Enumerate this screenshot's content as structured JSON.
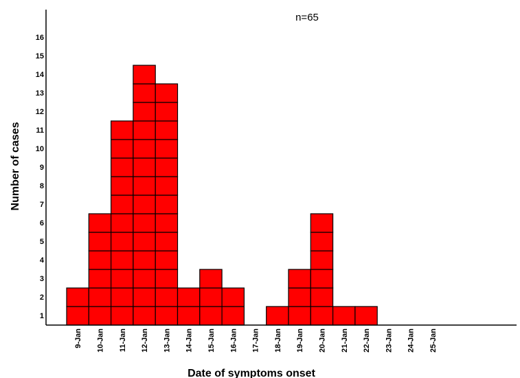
{
  "chart_data": {
    "type": "bar",
    "style": "epidemic curve (stacked case boxes)",
    "annotation": "n=65",
    "xlabel": "Date of symptoms onset",
    "ylabel": "Number of cases",
    "categories": [
      "9-Jan",
      "10-Jan",
      "11-Jan",
      "12-Jan",
      "13-Jan",
      "14-Jan",
      "15-Jan",
      "16-Jan",
      "17-Jan",
      "18-Jan",
      "19-Jan",
      "20-Jan",
      "21-Jan",
      "22-Jan",
      "23-Jan",
      "24-Jan",
      "25-Jan"
    ],
    "values": [
      2,
      6,
      11,
      14,
      13,
      2,
      3,
      2,
      0,
      1,
      3,
      6,
      1,
      1,
      0,
      0,
      0
    ],
    "ylim": [
      0,
      17
    ],
    "yticks": [
      "1",
      "2",
      "3",
      "4",
      "5",
      "6",
      "7",
      "8",
      "9",
      "10",
      "11",
      "12",
      "13",
      "14",
      "15",
      "16"
    ],
    "grid": false,
    "colors": {
      "bar_fill": "#ff0000",
      "bar_edge": "#000000"
    }
  }
}
